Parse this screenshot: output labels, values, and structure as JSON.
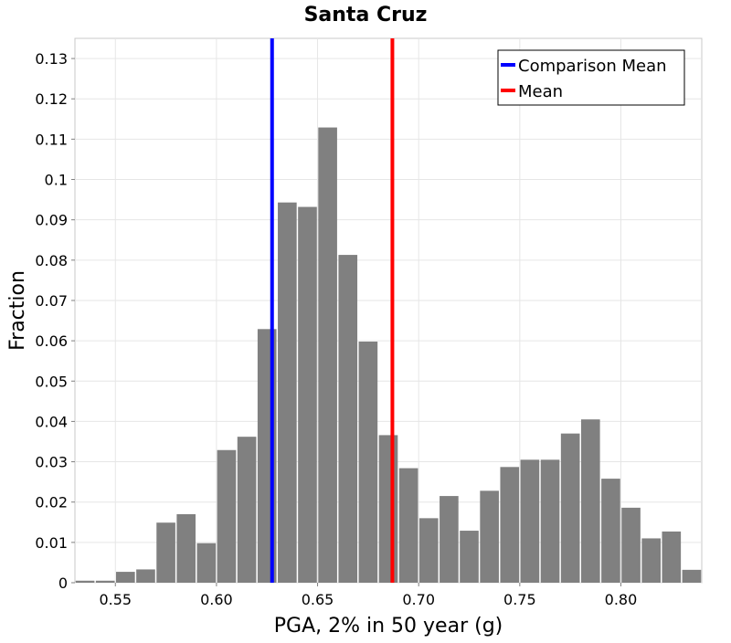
{
  "chart_data": {
    "type": "bar",
    "title": "Santa Cruz",
    "xlabel": "PGA, 2% in 50 year (g)",
    "ylabel": "Fraction",
    "xlim": [
      0.53,
      0.84
    ],
    "ylim": [
      0,
      0.135
    ],
    "grid": true,
    "bin_width": 0.01,
    "x_ticks": [
      0.55,
      0.6,
      0.65,
      0.7,
      0.75,
      0.8
    ],
    "x_tick_labels": [
      "0.55",
      "0.60",
      "0.65",
      "0.70",
      "0.75",
      "0.80"
    ],
    "y_ticks": [
      0,
      0.01,
      0.02,
      0.03,
      0.04,
      0.05,
      0.06,
      0.07,
      0.08,
      0.09,
      0.1,
      0.11,
      0.12,
      0.13
    ],
    "y_tick_labels": [
      "0",
      "0.01",
      "0.02",
      "0.03",
      "0.04",
      "0.05",
      "0.06",
      "0.07",
      "0.08",
      "0.09",
      "0.1",
      "0.11",
      "0.12",
      "0.13"
    ],
    "bins": [
      0.535,
      0.545,
      0.555,
      0.565,
      0.575,
      0.585,
      0.595,
      0.605,
      0.615,
      0.625,
      0.635,
      0.645,
      0.655,
      0.665,
      0.675,
      0.685,
      0.695,
      0.705,
      0.715,
      0.725,
      0.735,
      0.745,
      0.755,
      0.765,
      0.775,
      0.785,
      0.795,
      0.805,
      0.815,
      0.825,
      0.835
    ],
    "values": [
      0.0005,
      0.0005,
      0.0027,
      0.0033,
      0.0149,
      0.017,
      0.0098,
      0.0329,
      0.0362,
      0.0629,
      0.0943,
      0.0932,
      0.1129,
      0.0813,
      0.0598,
      0.0366,
      0.0284,
      0.016,
      0.0215,
      0.0129,
      0.0228,
      0.0287,
      0.0305,
      0.0305,
      0.037,
      0.0405,
      0.0258,
      0.0186,
      0.011,
      0.0127,
      0.0032
    ],
    "bar_color": "#808080",
    "lines": [
      {
        "name": "Comparison Mean",
        "x": 0.6275,
        "color": "#0000ff"
      },
      {
        "name": "Mean",
        "x": 0.687,
        "color": "#ff0000"
      }
    ],
    "legend_position": "top-right"
  }
}
